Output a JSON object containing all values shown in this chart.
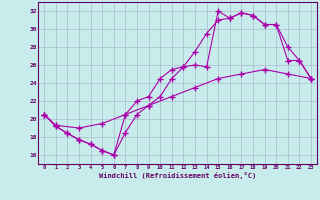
{
  "xlabel": "Windchill (Refroidissement éolien,°C)",
  "background_color": "#c8ecec",
  "grid_color": "#aabbcc",
  "line_color": "#aa00aa",
  "xlim": [
    -0.5,
    23.5
  ],
  "ylim": [
    15.0,
    33.0
  ],
  "yticks": [
    16,
    18,
    20,
    22,
    24,
    26,
    28,
    30,
    32
  ],
  "xticks": [
    0,
    1,
    2,
    3,
    4,
    5,
    6,
    7,
    8,
    9,
    10,
    11,
    12,
    13,
    14,
    15,
    16,
    17,
    18,
    19,
    20,
    21,
    22,
    23
  ],
  "series": [
    {
      "x": [
        0,
        1,
        3,
        5,
        7,
        9,
        11,
        13,
        15,
        17,
        19,
        21,
        23
      ],
      "y": [
        20.5,
        19.3,
        19.0,
        19.5,
        20.5,
        21.5,
        22.5,
        23.5,
        24.5,
        25.0,
        25.5,
        25.0,
        24.5
      ]
    },
    {
      "x": [
        0,
        1,
        2,
        3,
        4,
        5,
        6,
        7,
        8,
        9,
        10,
        11,
        12,
        13,
        14,
        15,
        16,
        17,
        18,
        19,
        20,
        21,
        22,
        23
      ],
      "y": [
        20.5,
        19.2,
        18.4,
        17.7,
        17.2,
        16.5,
        16.0,
        20.5,
        22.0,
        22.5,
        24.5,
        25.5,
        25.8,
        26.0,
        25.8,
        32.0,
        31.2,
        31.8,
        31.5,
        30.5,
        30.5,
        28.0,
        26.5,
        24.5
      ]
    },
    {
      "x": [
        0,
        1,
        2,
        3,
        4,
        5,
        6,
        7,
        8,
        9,
        10,
        11,
        12,
        13,
        14,
        15,
        16,
        17,
        18,
        19,
        20,
        21,
        22,
        23
      ],
      "y": [
        20.5,
        19.2,
        18.4,
        17.7,
        17.2,
        16.5,
        16.0,
        18.5,
        20.5,
        21.5,
        22.5,
        24.5,
        25.8,
        27.5,
        29.5,
        31.0,
        31.2,
        31.8,
        31.5,
        30.5,
        30.5,
        26.5,
        26.5,
        24.5
      ]
    }
  ]
}
